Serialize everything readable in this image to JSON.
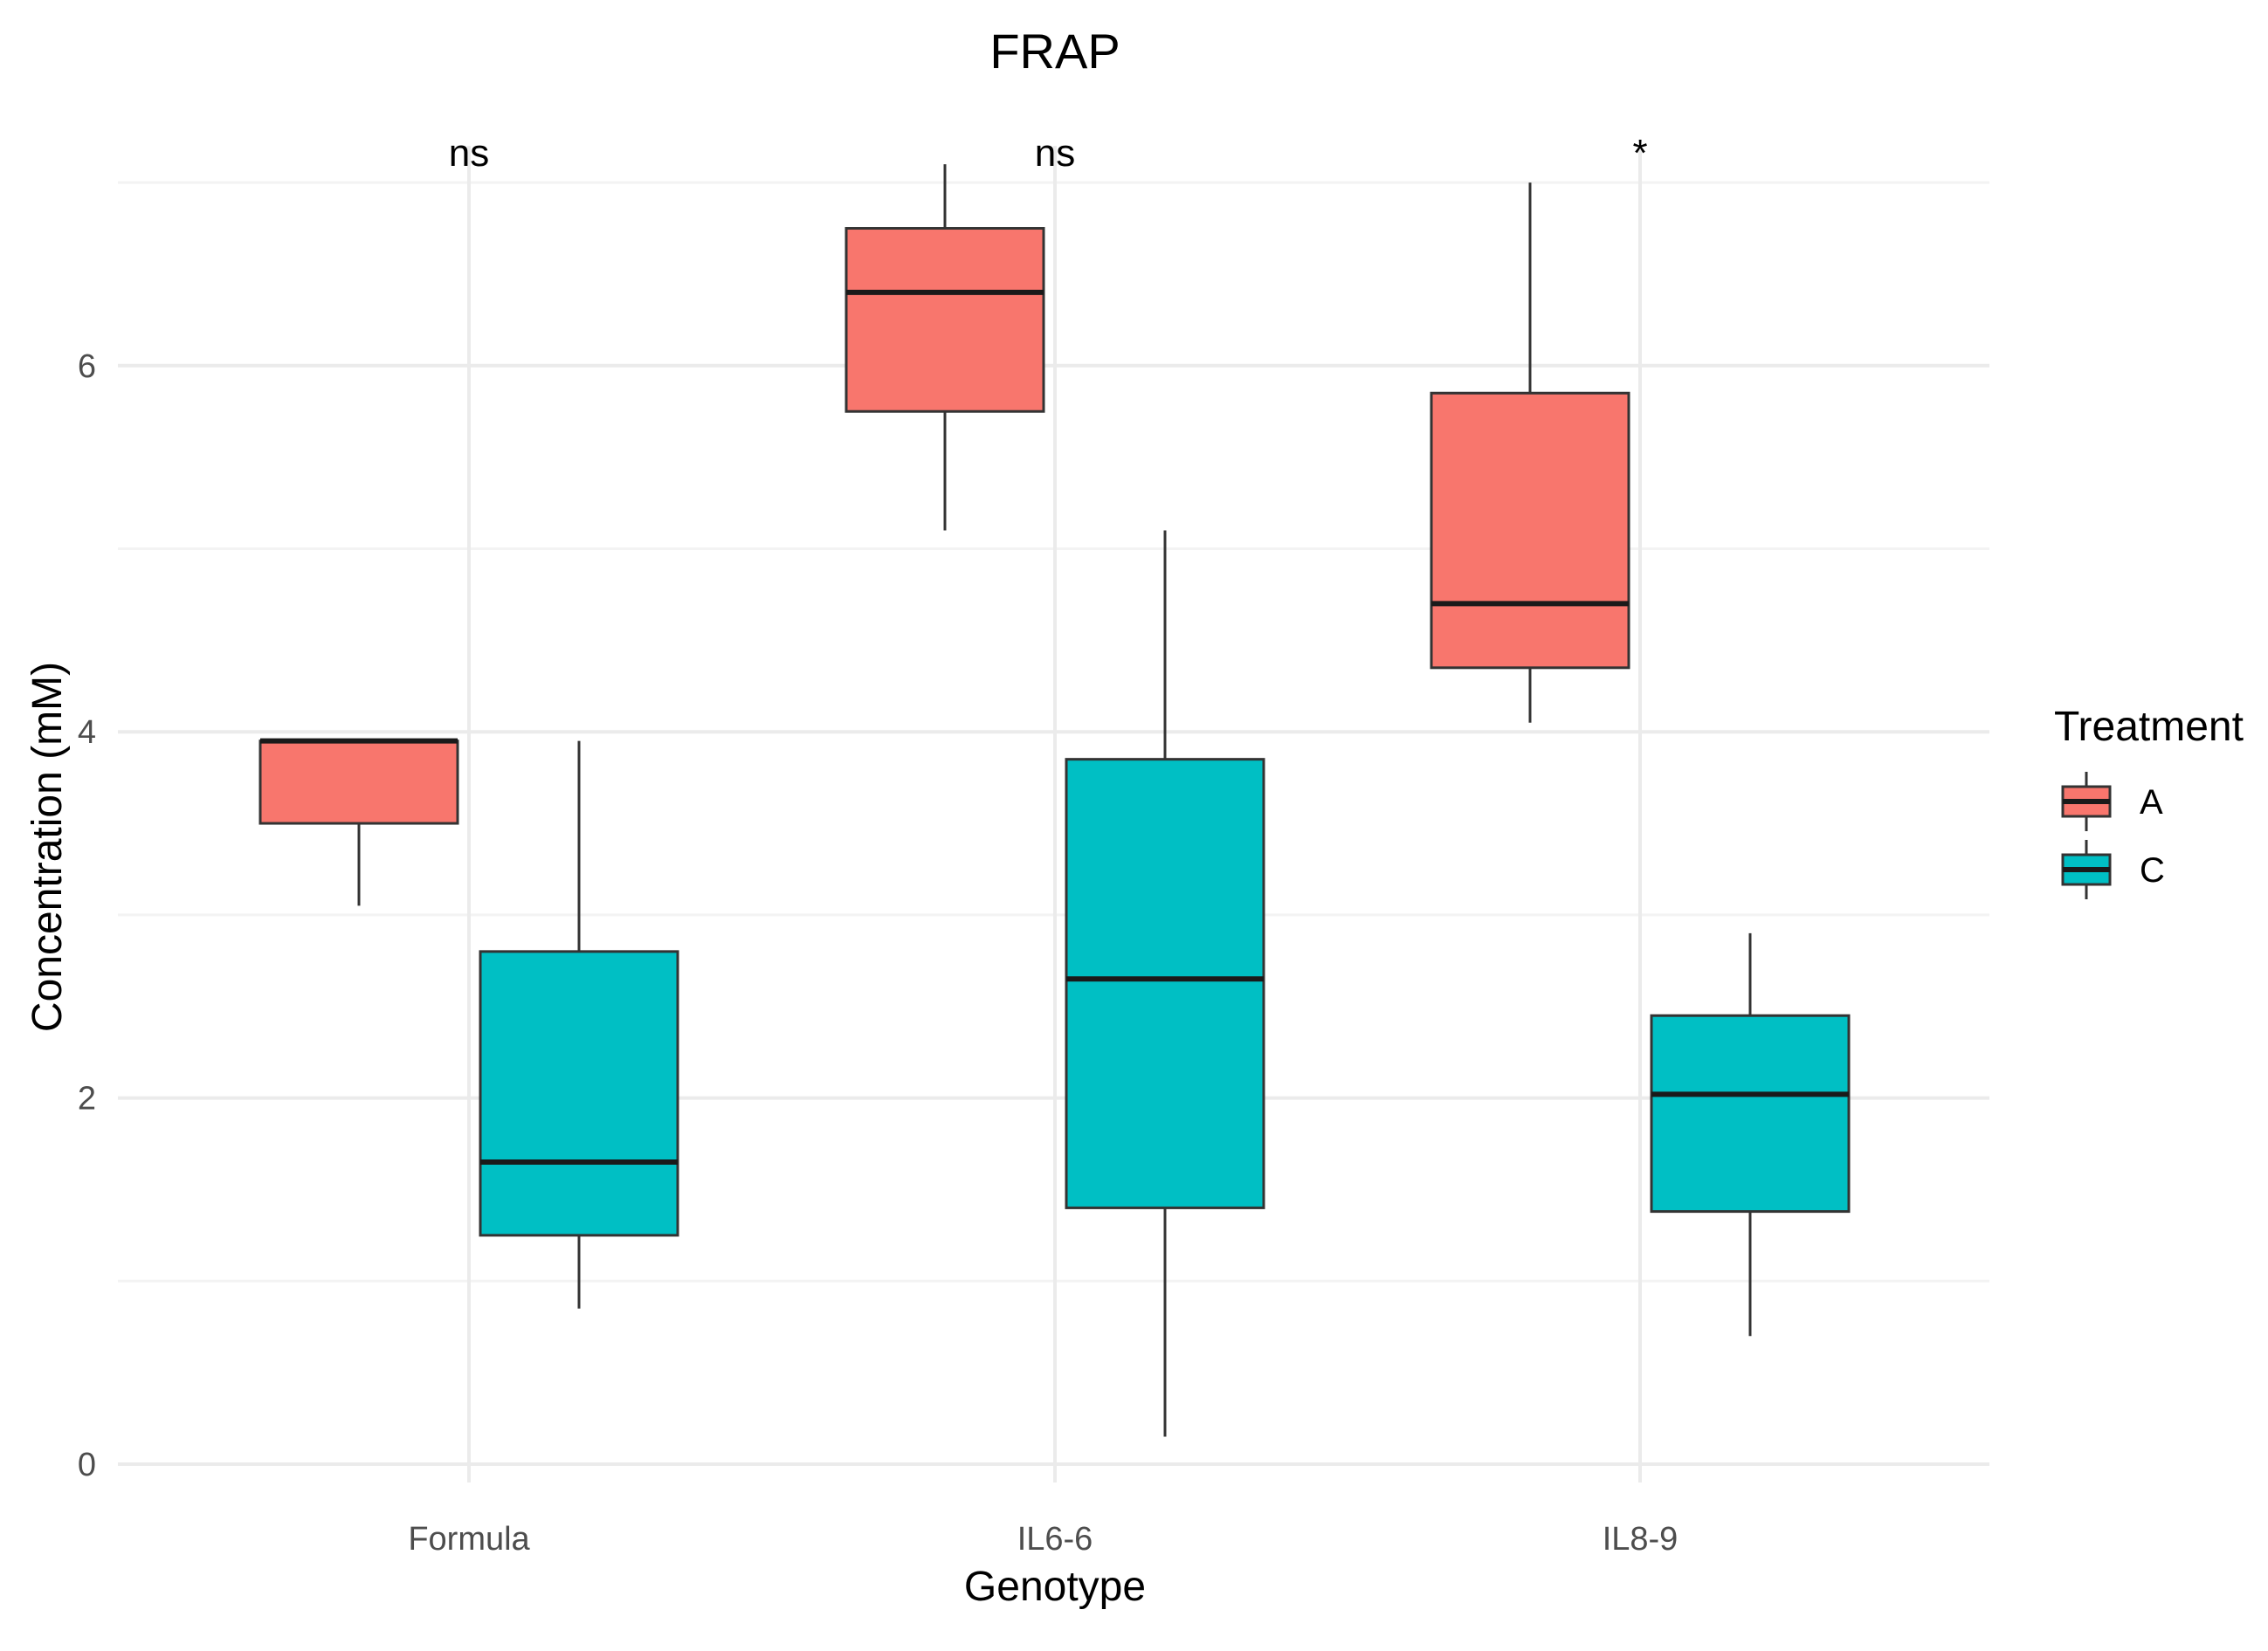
{
  "chart_data": {
    "type": "boxplot",
    "title": "FRAP",
    "xlabel": "Genotype",
    "ylabel": "Concentration (mM)",
    "ylim": [
      -0.1,
      7.2
    ],
    "yticks": [
      0,
      2,
      4,
      6
    ],
    "grid": true,
    "categories": [
      "Formula",
      "IL6-6",
      "IL8-9"
    ],
    "annotations": [
      "ns",
      "ns",
      "*"
    ],
    "legend": {
      "title": "Treatment",
      "position": "right"
    },
    "series": [
      {
        "name": "A",
        "color": "#F8766D",
        "boxes": [
          {
            "min": 3.05,
            "q1": 3.5,
            "median": 3.95,
            "q3": 3.95,
            "max": 3.95
          },
          {
            "min": 5.1,
            "q1": 5.75,
            "median": 6.4,
            "q3": 6.75,
            "max": 7.1
          },
          {
            "min": 4.05,
            "q1": 4.35,
            "median": 4.7,
            "q3": 5.85,
            "max": 7.0
          }
        ]
      },
      {
        "name": "C",
        "color": "#00BFC4",
        "boxes": [
          {
            "min": 0.85,
            "q1": 1.25,
            "median": 1.65,
            "q3": 2.8,
            "max": 3.95
          },
          {
            "min": 0.15,
            "q1": 1.4,
            "median": 2.65,
            "q3": 3.85,
            "max": 5.1
          },
          {
            "min": 0.7,
            "q1": 1.38,
            "median": 2.02,
            "q3": 2.45,
            "max": 2.9
          }
        ]
      }
    ]
  }
}
